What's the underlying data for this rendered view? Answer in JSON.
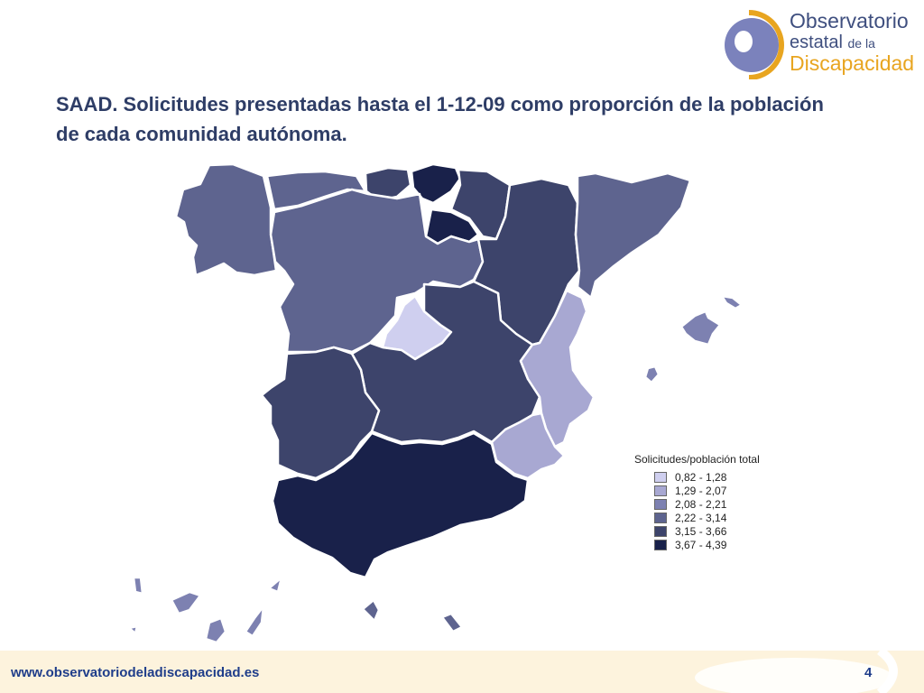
{
  "logo": {
    "line1": "Observatorio",
    "line2a": "estatal",
    "line2b": "de la",
    "line3": "Discapacidad"
  },
  "title": "SAAD. Solicitudes presentadas hasta el 1-12-09 como proporción de la población de cada comunidad autónoma.",
  "legend": {
    "title": "Solicitudes/población total",
    "items": [
      {
        "label": "0,82 - 1,28",
        "color": "#cfcfef"
      },
      {
        "label": "1,29 - 2,07",
        "color": "#a8a8d2"
      },
      {
        "label": "2,08 - 2,21",
        "color": "#7d81b1"
      },
      {
        "label": "2,22 - 3,14",
        "color": "#5e648f"
      },
      {
        "label": "3,15 - 3,66",
        "color": "#3d446b"
      },
      {
        "label": "3,67 - 4,39",
        "color": "#19214a"
      }
    ]
  },
  "footer": {
    "url": "www.observatoriodeladiscapacidad.es",
    "page": "4"
  },
  "colors": {
    "title": "#2e3d66",
    "accent": "#e8a520",
    "footer_bg": "#fdf3dd",
    "url": "#1f3d8a"
  }
}
